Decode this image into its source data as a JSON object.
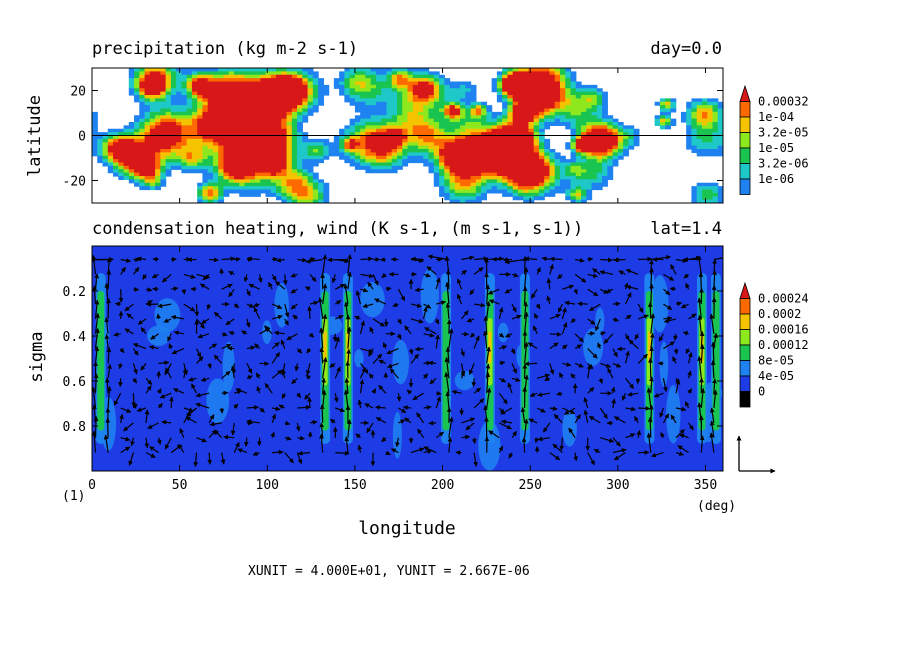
{
  "chart_data": [
    {
      "type": "heatmap",
      "title": "precipitation (kg m-2 s-1)",
      "title_right": "day=0.0",
      "ylabel": "latitude",
      "xlim": [
        0,
        360
      ],
      "ylim": [
        -30,
        30
      ],
      "yticks": [
        "20",
        "0",
        "-20"
      ],
      "ytick_values": [
        20,
        0,
        -20
      ],
      "zero_line": true,
      "colorbar": {
        "labels": [
          "0.00032",
          "1e-04",
          "3.2e-05",
          "1e-05",
          "3.2e-06",
          "1e-06"
        ],
        "colors": [
          "#d81818",
          "#ff6a00",
          "#f5c400",
          "#8ee81e",
          "#1ac450",
          "#1ec8c8",
          "#1e82f0"
        ]
      }
    },
    {
      "type": "heatmap",
      "title": "condensation heating, wind (K s-1, (m s-1, s-1))",
      "title_right": "lat=1.4",
      "xlabel": "longitude",
      "ylabel": "sigma",
      "xlim": [
        0,
        360
      ],
      "ylim": [
        1.0,
        0.0
      ],
      "xticks": [
        "0",
        "50",
        "100",
        "150",
        "200",
        "250",
        "300",
        "350"
      ],
      "xtick_values": [
        0,
        50,
        100,
        150,
        200,
        250,
        300,
        350
      ],
      "yticks": [
        "0.2",
        "0.4",
        "0.6",
        "0.8"
      ],
      "ytick_values": [
        0.2,
        0.4,
        0.6,
        0.8
      ],
      "x_unit_label": "(deg)",
      "corner_label": "(1)",
      "heating_columns_lon": [
        5,
        133,
        146,
        202,
        227,
        247,
        318,
        348,
        356
      ],
      "colorbar": {
        "labels": [
          "0.00024",
          "0.0002",
          "0.00016",
          "0.00012",
          "8e-05",
          "4e-05",
          "0"
        ],
        "colors": [
          "#d81818",
          "#ff6a00",
          "#f5c400",
          "#8ee81e",
          "#1ac450",
          "#1e82f0",
          "#1e3ce6"
        ]
      },
      "vector_reference": "XUNIT = 4.000E+01, YUNIT = 2.667E-06"
    }
  ]
}
